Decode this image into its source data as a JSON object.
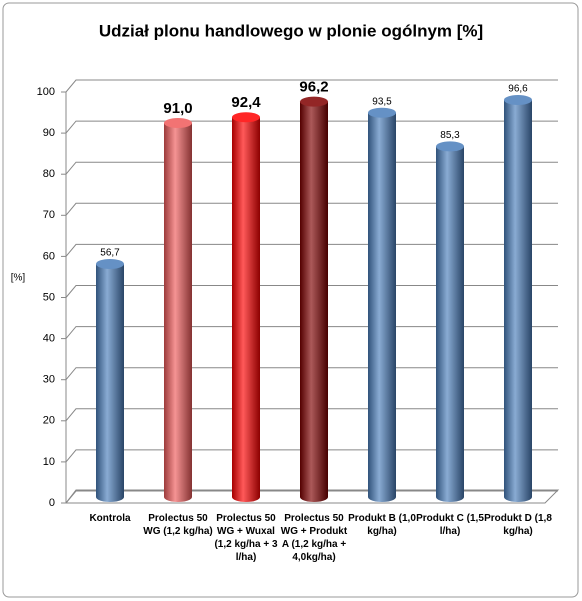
{
  "chart_data": {
    "type": "bar",
    "title": "Udział plonu handlowego w plonie ogólnym [%]",
    "y_label": "[%]",
    "categories": [
      "Kontrola",
      "Prolectus 50 WG (1,2 kg/ha)",
      "Prolectus 50 WG + Wuxal (1,2 kg/ha + 3 l/ha)",
      "Prolectus 50 WG + Produkt A (1,2 kg/ha + 4,0kg/ha)",
      "Produkt B (1,0 kg/ha)",
      "Produkt C (1,5 l/ha)",
      "Produkt D (1,8 kg/ha)"
    ],
    "values": [
      56.7,
      91.0,
      92.4,
      96.2,
      93.5,
      85.3,
      96.6
    ],
    "value_labels": [
      "56,7",
      "91,0",
      "92,4",
      "96,2",
      "93,5",
      "85,3",
      "96,6"
    ],
    "colors": [
      "#4a7ebb",
      "#f05a5a",
      "#ff0000",
      "#800000",
      "#4a7ebb",
      "#4a7ebb",
      "#4a7ebb"
    ],
    "ylim": [
      0,
      100
    ],
    "yticks": [
      0,
      10,
      20,
      30,
      40,
      50,
      60,
      70,
      80,
      90,
      100
    ],
    "grid": true
  }
}
